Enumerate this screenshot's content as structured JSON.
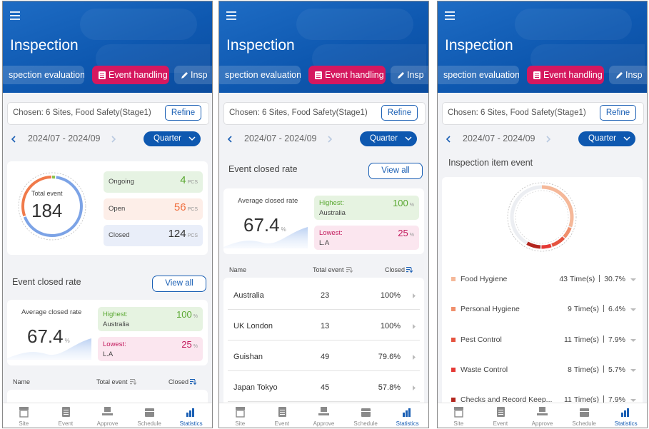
{
  "screens": [
    {
      "header": {
        "title": "Inspection",
        "tabs": [
          "spection evaluation",
          "Event handling",
          "Insp"
        ]
      },
      "filter": {
        "chosen": "Chosen: 6 Sites, Food Safety(Stage1)",
        "button": "Refine"
      },
      "period": {
        "range": "2024/07 - 2024/09",
        "select": "Quarter"
      },
      "summary": {
        "total_label": "Total event",
        "total": 184,
        "items": [
          {
            "label": "Ongoing",
            "value": 4,
            "unit": "PCS"
          },
          {
            "label": "Open",
            "value": 56,
            "unit": "PCS"
          },
          {
            "label": "Closed",
            "value": 124,
            "unit": "PCS"
          }
        ]
      },
      "closed_rate": {
        "title": "Event closed rate",
        "button": "View all",
        "average_label": "Average closed rate",
        "average": 67.4,
        "average_unit": "%",
        "highest_label": "Highest:",
        "highest_site": "Australia",
        "highest": 100,
        "highest_unit": "%",
        "lowest_label": "Lowest:",
        "lowest_site": "L.A",
        "lowest": 25,
        "lowest_unit": "%"
      },
      "table": {
        "headers": [
          "Name",
          "Total event",
          "Closed"
        ]
      },
      "nav": [
        "Site",
        "Event",
        "Approve",
        "Schedule",
        "Statistics"
      ]
    },
    {
      "header": {
        "title": "Inspection",
        "tabs": [
          "spection evaluation",
          "Event handling",
          "Insp"
        ]
      },
      "filter": {
        "chosen": "Chosen: 6 Sites, Food Safety(Stage1)",
        "button": "Refine"
      },
      "period": {
        "range": "2024/07 - 2024/09",
        "select": "Quarter"
      },
      "closed_rate": {
        "title": "Event closed rate",
        "button": "View all",
        "average_label": "Average closed rate",
        "average": 67.4,
        "average_unit": "%",
        "highest_label": "Highest:",
        "highest_site": "Australia",
        "highest": 100,
        "highest_unit": "%",
        "lowest_label": "Lowest:",
        "lowest_site": "L.A",
        "lowest": 25,
        "lowest_unit": "%"
      },
      "table": {
        "headers": [
          "Name",
          "Total event",
          "Closed"
        ],
        "rows": [
          [
            "Australia",
            23,
            "100%"
          ],
          [
            "UK London",
            13,
            "100%"
          ],
          [
            "Guishan",
            49,
            "79.6%"
          ],
          [
            "Japan Tokyo",
            45,
            "57.8%"
          ]
        ]
      },
      "nav": [
        "Site",
        "Event",
        "Approve",
        "Schedule",
        "Statistics"
      ]
    },
    {
      "header": {
        "title": "Inspection",
        "tabs": [
          "spection evaluation",
          "Event handling",
          "Insp"
        ]
      },
      "filter": {
        "chosen": "Chosen: 6 Sites, Food Safety(Stage1)",
        "button": "Refine"
      },
      "period": {
        "range": "2024/07 - 2024/09",
        "select": "Quarter"
      },
      "item_event": {
        "title": "Inspection item event",
        "items": [
          {
            "label": "Food Hygiene",
            "count": 43,
            "unit": "Time(s)",
            "percent": 30.7,
            "percent_unit": "%",
            "color": "#f5b899"
          },
          {
            "label": "Personal Hygiene",
            "count": 9,
            "unit": "Time(s)",
            "percent": 6.4,
            "percent_unit": "%",
            "color": "#f08f6c"
          },
          {
            "label": "Pest Control",
            "count": 11,
            "unit": "Time(s)",
            "percent": 7.9,
            "percent_unit": "%",
            "color": "#e5533f"
          },
          {
            "label": "Waste Control",
            "count": 8,
            "unit": "Time(s)",
            "percent": 5.7,
            "percent_unit": "%",
            "color": "#e53935"
          },
          {
            "label": "Checks and Record Keep...",
            "count": 11,
            "unit": "Time(s)",
            "percent": 7.9,
            "percent_unit": "%",
            "color": "#b3261e"
          }
        ]
      },
      "nav": [
        "Site",
        "Event",
        "Approve",
        "Schedule",
        "Statistics"
      ]
    }
  ]
}
